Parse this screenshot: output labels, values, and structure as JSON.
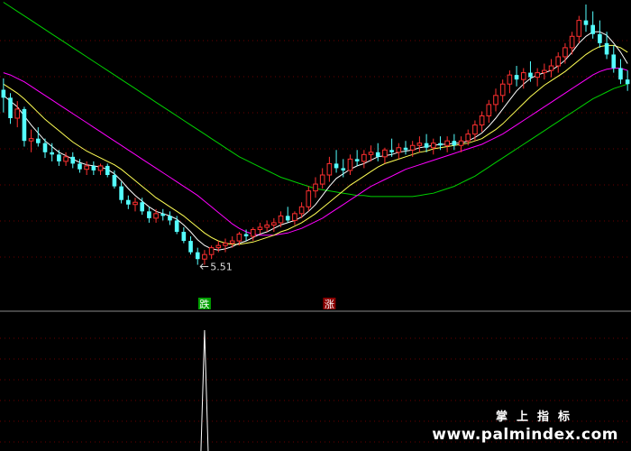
{
  "chart_data": {
    "type": "candlestick",
    "colors": {
      "background": "#000000",
      "up": "#ff3030",
      "down": "#54ffff",
      "ma_short": "#ffffff",
      "ma_mid": "#ffff55",
      "ma_long": "#ff00ff",
      "ma_longest": "#00d000",
      "grid": "#6a0000",
      "indicator": "#ffffff"
    },
    "price_range": [
      5.3,
      7.8
    ],
    "low_marker": "5.51",
    "signal_down_label": "跌",
    "signal_up_label": "涨",
    "signal_down_bar": 29,
    "signal_up_bar": 47,
    "signal_bar_index": 29,
    "candles": [
      [
        7.05,
        7.15,
        6.85,
        6.98
      ],
      [
        6.98,
        7.02,
        6.75,
        6.8
      ],
      [
        6.8,
        6.95,
        6.72,
        6.88
      ],
      [
        6.88,
        6.9,
        6.55,
        6.6
      ],
      [
        6.6,
        6.7,
        6.5,
        6.62
      ],
      [
        6.62,
        6.72,
        6.55,
        6.58
      ],
      [
        6.58,
        6.62,
        6.45,
        6.5
      ],
      [
        6.5,
        6.58,
        6.42,
        6.48
      ],
      [
        6.48,
        6.52,
        6.38,
        6.42
      ],
      [
        6.42,
        6.5,
        6.38,
        6.46
      ],
      [
        6.46,
        6.5,
        6.36,
        6.4
      ],
      [
        6.4,
        6.44,
        6.32,
        6.35
      ],
      [
        6.35,
        6.42,
        6.3,
        6.38
      ],
      [
        6.38,
        6.42,
        6.3,
        6.34
      ],
      [
        6.34,
        6.4,
        6.3,
        6.38
      ],
      [
        6.38,
        6.4,
        6.28,
        6.3
      ],
      [
        6.3,
        6.34,
        6.18,
        6.2
      ],
      [
        6.2,
        6.24,
        6.05,
        6.08
      ],
      [
        6.08,
        6.12,
        6.0,
        6.04
      ],
      [
        6.04,
        6.1,
        5.98,
        6.06
      ],
      [
        6.06,
        6.1,
        5.95,
        5.98
      ],
      [
        5.98,
        6.02,
        5.88,
        5.92
      ],
      [
        5.92,
        6.0,
        5.88,
        5.96
      ],
      [
        5.96,
        6.0,
        5.9,
        5.94
      ],
      [
        5.94,
        5.98,
        5.86,
        5.9
      ],
      [
        5.9,
        5.94,
        5.78,
        5.8
      ],
      [
        5.8,
        5.84,
        5.7,
        5.72
      ],
      [
        5.72,
        5.76,
        5.6,
        5.62
      ],
      [
        5.62,
        5.66,
        5.51,
        5.56
      ],
      [
        5.56,
        5.64,
        5.51,
        5.6
      ],
      [
        5.6,
        5.68,
        5.56,
        5.66
      ],
      [
        5.66,
        5.72,
        5.62,
        5.68
      ],
      [
        5.68,
        5.74,
        5.62,
        5.7
      ],
      [
        5.7,
        5.76,
        5.66,
        5.72
      ],
      [
        5.72,
        5.8,
        5.68,
        5.78
      ],
      [
        5.78,
        5.82,
        5.72,
        5.76
      ],
      [
        5.76,
        5.84,
        5.72,
        5.82
      ],
      [
        5.82,
        5.88,
        5.78,
        5.84
      ],
      [
        5.84,
        5.9,
        5.8,
        5.86
      ],
      [
        5.86,
        5.92,
        5.8,
        5.88
      ],
      [
        5.88,
        5.98,
        5.84,
        5.94
      ],
      [
        5.94,
        6.02,
        5.88,
        5.9
      ],
      [
        5.9,
        5.98,
        5.86,
        5.96
      ],
      [
        5.96,
        6.06,
        5.92,
        6.02
      ],
      [
        6.02,
        6.2,
        5.98,
        6.16
      ],
      [
        6.16,
        6.28,
        6.1,
        6.22
      ],
      [
        6.22,
        6.36,
        6.18,
        6.3
      ],
      [
        6.3,
        6.46,
        6.24,
        6.4
      ],
      [
        6.4,
        6.52,
        6.32,
        6.36
      ],
      [
        6.36,
        6.44,
        6.28,
        6.34
      ],
      [
        6.34,
        6.48,
        6.3,
        6.44
      ],
      [
        6.44,
        6.52,
        6.38,
        6.42
      ],
      [
        6.42,
        6.52,
        6.36,
        6.48
      ],
      [
        6.48,
        6.56,
        6.42,
        6.5
      ],
      [
        6.5,
        6.58,
        6.42,
        6.46
      ],
      [
        6.46,
        6.54,
        6.4,
        6.52
      ],
      [
        6.52,
        6.62,
        6.46,
        6.5
      ],
      [
        6.5,
        6.58,
        6.44,
        6.54
      ],
      [
        6.54,
        6.6,
        6.48,
        6.52
      ],
      [
        6.52,
        6.6,
        6.46,
        6.56
      ],
      [
        6.56,
        6.64,
        6.5,
        6.58
      ],
      [
        6.58,
        6.66,
        6.5,
        6.54
      ],
      [
        6.54,
        6.62,
        6.48,
        6.58
      ],
      [
        6.58,
        6.64,
        6.52,
        6.56
      ],
      [
        6.56,
        6.64,
        6.5,
        6.6
      ],
      [
        6.6,
        6.66,
        6.52,
        6.56
      ],
      [
        6.56,
        6.64,
        6.5,
        6.6
      ],
      [
        6.6,
        6.7,
        6.56,
        6.66
      ],
      [
        6.66,
        6.78,
        6.6,
        6.74
      ],
      [
        6.74,
        6.86,
        6.68,
        6.82
      ],
      [
        6.82,
        6.96,
        6.76,
        6.92
      ],
      [
        6.92,
        7.06,
        6.86,
        7.0
      ],
      [
        7.0,
        7.14,
        6.94,
        7.1
      ],
      [
        7.1,
        7.22,
        7.02,
        7.18
      ],
      [
        7.18,
        7.26,
        7.08,
        7.14
      ],
      [
        7.14,
        7.24,
        7.06,
        7.2
      ],
      [
        7.2,
        7.3,
        7.12,
        7.16
      ],
      [
        7.16,
        7.24,
        7.08,
        7.2
      ],
      [
        7.2,
        7.28,
        7.14,
        7.22
      ],
      [
        7.22,
        7.32,
        7.16,
        7.26
      ],
      [
        7.26,
        7.38,
        7.2,
        7.34
      ],
      [
        7.34,
        7.46,
        7.28,
        7.42
      ],
      [
        7.42,
        7.56,
        7.36,
        7.52
      ],
      [
        7.52,
        7.7,
        7.46,
        7.66
      ],
      [
        7.66,
        7.8,
        7.56,
        7.62
      ],
      [
        7.62,
        7.74,
        7.5,
        7.54
      ],
      [
        7.54,
        7.66,
        7.42,
        7.46
      ],
      [
        7.46,
        7.56,
        7.32,
        7.36
      ],
      [
        7.36,
        7.44,
        7.2,
        7.24
      ],
      [
        7.24,
        7.32,
        7.1,
        7.14
      ],
      [
        7.14,
        7.22,
        7.04,
        7.1
      ]
    ],
    "ma_short": [
      7.0,
      6.95,
      6.9,
      6.82,
      6.74,
      6.67,
      6.6,
      6.55,
      6.5,
      6.47,
      6.44,
      6.41,
      6.39,
      6.38,
      6.37,
      6.35,
      6.31,
      6.25,
      6.18,
      6.12,
      6.07,
      6.02,
      5.98,
      5.96,
      5.94,
      5.91,
      5.86,
      5.8,
      5.73,
      5.68,
      5.65,
      5.64,
      5.65,
      5.67,
      5.7,
      5.72,
      5.75,
      5.78,
      5.8,
      5.83,
      5.86,
      5.88,
      5.9,
      5.93,
      5.98,
      6.04,
      6.12,
      6.2,
      6.27,
      6.31,
      6.35,
      6.38,
      6.4,
      6.43,
      6.46,
      6.47,
      6.48,
      6.5,
      6.51,
      6.52,
      6.54,
      6.55,
      6.56,
      6.57,
      6.57,
      6.58,
      6.58,
      6.6,
      6.63,
      6.67,
      6.73,
      6.8,
      6.88,
      6.96,
      7.04,
      7.1,
      7.15,
      7.18,
      7.2,
      7.22,
      7.26,
      7.31,
      7.38,
      7.46,
      7.52,
      7.56,
      7.56,
      7.53,
      7.46,
      7.38,
      7.28
    ],
    "ma_mid": [
      7.1,
      7.06,
      7.02,
      6.97,
      6.91,
      6.85,
      6.79,
      6.74,
      6.69,
      6.64,
      6.59,
      6.55,
      6.51,
      6.48,
      6.45,
      6.42,
      6.39,
      6.35,
      6.3,
      6.25,
      6.2,
      6.15,
      6.1,
      6.06,
      6.02,
      5.98,
      5.94,
      5.89,
      5.84,
      5.79,
      5.75,
      5.72,
      5.7,
      5.69,
      5.69,
      5.7,
      5.71,
      5.73,
      5.75,
      5.77,
      5.8,
      5.82,
      5.85,
      5.88,
      5.92,
      5.96,
      6.01,
      6.06,
      6.11,
      6.16,
      6.21,
      6.25,
      6.29,
      6.33,
      6.37,
      6.4,
      6.42,
      6.44,
      6.46,
      6.48,
      6.5,
      6.51,
      6.53,
      6.54,
      6.55,
      6.56,
      6.57,
      6.58,
      6.6,
      6.62,
      6.66,
      6.7,
      6.75,
      6.81,
      6.87,
      6.93,
      6.99,
      7.04,
      7.09,
      7.13,
      7.17,
      7.21,
      7.26,
      7.31,
      7.36,
      7.4,
      7.43,
      7.44,
      7.44,
      7.42,
      7.38
    ],
    "ma_long": [
      7.2,
      7.18,
      7.15,
      7.12,
      7.08,
      7.04,
      7.0,
      6.96,
      6.92,
      6.88,
      6.84,
      6.8,
      6.76,
      6.72,
      6.68,
      6.64,
      6.6,
      6.56,
      6.52,
      6.48,
      6.44,
      6.4,
      6.36,
      6.32,
      6.28,
      6.24,
      6.2,
      6.16,
      6.12,
      6.07,
      6.02,
      5.97,
      5.92,
      5.87,
      5.83,
      5.8,
      5.78,
      5.77,
      5.77,
      5.77,
      5.78,
      5.79,
      5.81,
      5.83,
      5.86,
      5.89,
      5.92,
      5.96,
      6.0,
      6.04,
      6.08,
      6.12,
      6.16,
      6.2,
      6.23,
      6.26,
      6.29,
      6.32,
      6.35,
      6.37,
      6.39,
      6.41,
      6.43,
      6.45,
      6.47,
      6.49,
      6.51,
      6.53,
      6.55,
      6.57,
      6.6,
      6.63,
      6.66,
      6.7,
      6.74,
      6.78,
      6.82,
      6.86,
      6.9,
      6.94,
      6.98,
      7.02,
      7.06,
      7.1,
      7.14,
      7.18,
      7.21,
      7.23,
      7.24,
      7.24,
      7.22
    ],
    "ma_longest": [
      7.82,
      7.78,
      7.74,
      7.7,
      7.66,
      7.62,
      7.58,
      7.54,
      7.5,
      7.46,
      7.42,
      7.38,
      7.34,
      7.3,
      7.26,
      7.22,
      7.18,
      7.14,
      7.1,
      7.06,
      7.02,
      6.98,
      6.94,
      6.9,
      6.86,
      6.82,
      6.78,
      6.74,
      6.7,
      6.66,
      6.62,
      6.58,
      6.54,
      6.5,
      6.46,
      6.43,
      6.4,
      6.37,
      6.34,
      6.31,
      6.28,
      6.26,
      6.24,
      6.22,
      6.2,
      6.18,
      6.17,
      6.16,
      6.15,
      6.14,
      6.13,
      6.12,
      6.12,
      6.11,
      6.11,
      6.11,
      6.11,
      6.11,
      6.11,
      6.11,
      6.12,
      6.13,
      6.14,
      6.16,
      6.18,
      6.2,
      6.23,
      6.26,
      6.29,
      6.33,
      6.37,
      6.41,
      6.45,
      6.49,
      6.53,
      6.57,
      6.61,
      6.65,
      6.69,
      6.73,
      6.77,
      6.81,
      6.85,
      6.89,
      6.93,
      6.97,
      7.0,
      7.03,
      7.06,
      7.08,
      7.1
    ]
  },
  "watermark": {
    "title": "掌上指标",
    "url": "www.palmindex.com"
  }
}
